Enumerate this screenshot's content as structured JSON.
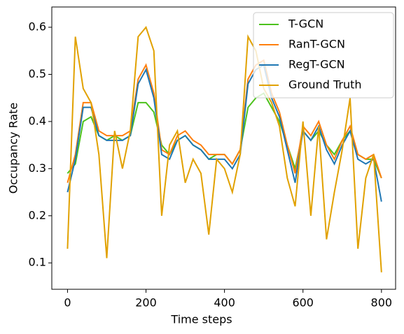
{
  "chart_data": {
    "type": "line",
    "xlabel": "Time steps",
    "ylabel": "Occupancy Rate",
    "x": [
      0,
      20,
      40,
      60,
      80,
      100,
      120,
      140,
      160,
      180,
      200,
      220,
      240,
      260,
      280,
      300,
      320,
      340,
      360,
      380,
      400,
      420,
      440,
      460,
      480,
      500,
      520,
      540,
      560,
      580,
      600,
      620,
      640,
      660,
      680,
      700,
      720,
      740,
      760,
      780,
      800
    ],
    "series": [
      {
        "name": "T-GCN",
        "color": "#4cc21c",
        "values": [
          0.29,
          0.31,
          0.4,
          0.41,
          0.37,
          0.36,
          0.37,
          0.36,
          0.37,
          0.44,
          0.44,
          0.42,
          0.35,
          0.33,
          0.36,
          0.37,
          0.35,
          0.34,
          0.32,
          0.33,
          0.33,
          0.31,
          0.34,
          0.43,
          0.45,
          0.46,
          0.43,
          0.4,
          0.35,
          0.3,
          0.38,
          0.36,
          0.38,
          0.35,
          0.33,
          0.36,
          0.38,
          0.33,
          0.32,
          0.32,
          0.28
        ]
      },
      {
        "name": "RanT-GCN",
        "color": "#ff7f0e",
        "values": [
          0.27,
          0.33,
          0.44,
          0.44,
          0.38,
          0.37,
          0.37,
          0.37,
          0.38,
          0.49,
          0.52,
          0.46,
          0.34,
          0.33,
          0.37,
          0.38,
          0.36,
          0.35,
          0.33,
          0.33,
          0.33,
          0.31,
          0.34,
          0.49,
          0.52,
          0.53,
          0.46,
          0.42,
          0.35,
          0.29,
          0.39,
          0.37,
          0.4,
          0.35,
          0.32,
          0.36,
          0.39,
          0.33,
          0.32,
          0.33,
          0.28
        ]
      },
      {
        "name": "RegT-GCN",
        "color": "#1f77b4",
        "values": [
          0.25,
          0.32,
          0.43,
          0.43,
          0.37,
          0.36,
          0.36,
          0.36,
          0.37,
          0.48,
          0.51,
          0.45,
          0.33,
          0.32,
          0.36,
          0.37,
          0.35,
          0.34,
          0.32,
          0.32,
          0.32,
          0.3,
          0.33,
          0.48,
          0.51,
          0.52,
          0.45,
          0.41,
          0.34,
          0.27,
          0.38,
          0.36,
          0.39,
          0.34,
          0.31,
          0.35,
          0.38,
          0.32,
          0.31,
          0.32,
          0.23
        ]
      },
      {
        "name": "Ground Truth",
        "color": "#e1a100",
        "values": [
          0.13,
          0.58,
          0.47,
          0.44,
          0.33,
          0.11,
          0.38,
          0.3,
          0.38,
          0.58,
          0.6,
          0.55,
          0.2,
          0.35,
          0.38,
          0.27,
          0.32,
          0.29,
          0.16,
          0.32,
          0.3,
          0.25,
          0.33,
          0.58,
          0.55,
          0.47,
          0.44,
          0.39,
          0.28,
          0.22,
          0.4,
          0.2,
          0.39,
          0.15,
          0.25,
          0.34,
          0.45,
          0.13,
          0.28,
          0.33,
          0.08
        ]
      }
    ],
    "xlim": [
      -40,
      836
    ],
    "ylim": [
      0.044,
      0.643
    ],
    "xticks": [
      0,
      200,
      400,
      600,
      800
    ],
    "yticks": [
      0.1,
      0.2,
      0.3,
      0.4,
      0.5,
      0.6
    ],
    "legend": "upper right"
  }
}
